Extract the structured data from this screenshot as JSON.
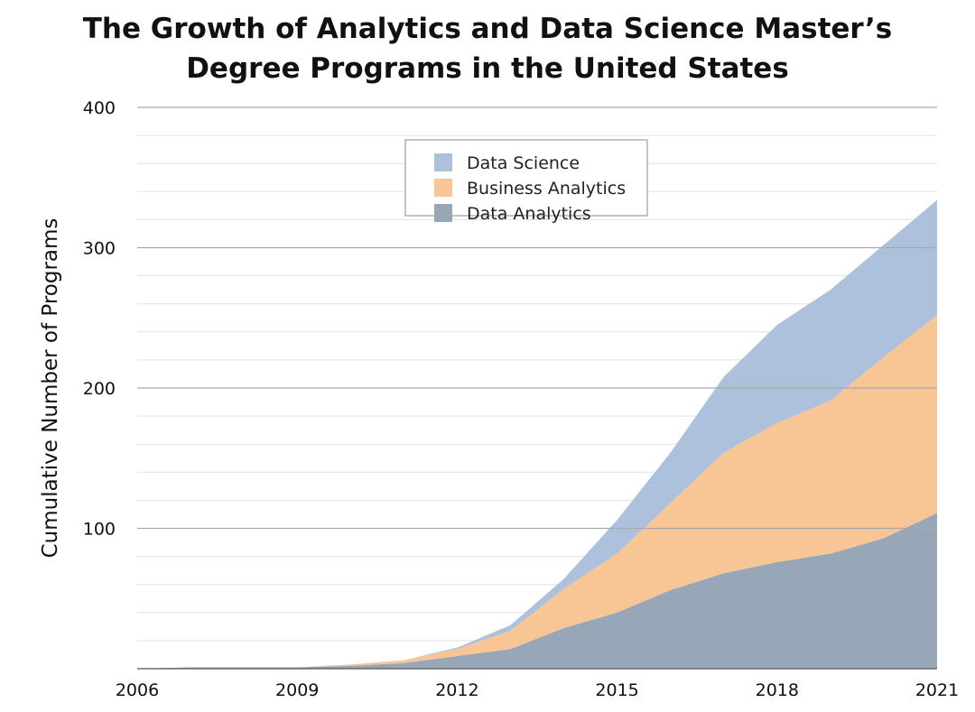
{
  "chart_data": {
    "type": "area",
    "stacked": true,
    "title_lines": [
      "The Growth of Analytics and Data Science Master’s",
      "Degree Programs in the United States"
    ],
    "xlabel": "",
    "ylabel": "Cumulative Number of Programs",
    "xlim": [
      2006,
      2021
    ],
    "ylim": [
      0,
      400
    ],
    "x_ticks": [
      "2006",
      "2009",
      "2012",
      "2015",
      "2018",
      "2021"
    ],
    "y_ticks": [
      "100",
      "200",
      "300",
      "400"
    ],
    "major_grid_values": [
      100,
      200,
      300,
      400
    ],
    "minor_grid_step": 20,
    "legend_position": "top-center",
    "x": [
      2006,
      2007,
      2008,
      2009,
      2010,
      2011,
      2012,
      2013,
      2014,
      2015,
      2016,
      2017,
      2018,
      2019,
      2020,
      2021
    ],
    "series": [
      {
        "name": "Data Analytics",
        "color": "#97a7b8",
        "values": [
          0,
          1,
          1,
          1,
          2,
          4,
          9,
          14,
          29,
          40,
          56,
          68,
          76,
          82,
          93,
          111
        ]
      },
      {
        "name": "Business Analytics",
        "color": "#f8c695",
        "values": [
          0,
          0,
          0,
          0,
          1,
          2,
          5,
          13,
          28,
          42,
          62,
          86,
          99,
          109,
          129,
          141
        ]
      },
      {
        "name": "Data Science",
        "color": "#adc1dd",
        "values": [
          0,
          0,
          0,
          0,
          0,
          0,
          1,
          4,
          7,
          24,
          36,
          54,
          70,
          79,
          80,
          82
        ]
      }
    ],
    "legend_order": [
      "Data Science",
      "Business Analytics",
      "Data Analytics"
    ]
  }
}
